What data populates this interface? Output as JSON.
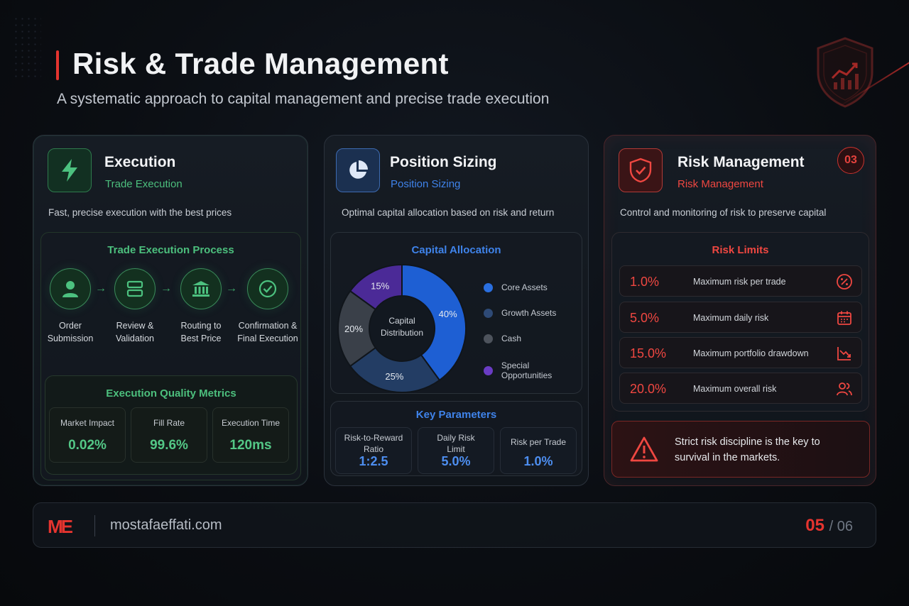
{
  "header": {
    "title": "Risk & Trade Management",
    "subtitle": "A systematic approach to capital management and precise trade execution",
    "accent_color": "#e5342f"
  },
  "execution": {
    "title": "Execution",
    "subtitle": "Trade Execution",
    "description": "Fast, precise execution with the best prices",
    "accent_color": "#47b877",
    "icon": "lightning-icon",
    "process": {
      "title": "Trade Execution Process",
      "steps": [
        {
          "label_1": "Order",
          "label_2": "Submission",
          "icon": "user-icon"
        },
        {
          "label_1": "Review &",
          "label_2": "Validation",
          "icon": "server-icon"
        },
        {
          "label_1": "Routing to",
          "label_2": "Best Price",
          "icon": "bank-icon"
        },
        {
          "label_1": "Confirmation &",
          "label_2": "Final Execution",
          "icon": "check-circle-icon"
        }
      ]
    },
    "metrics": {
      "title": "Execution Quality Metrics",
      "items": [
        {
          "label": "Market Impact",
          "value": "0.02%"
        },
        {
          "label": "Fill Rate",
          "value": "99.6%"
        },
        {
          "label": "Execution Time",
          "value": "120ms"
        }
      ]
    }
  },
  "position": {
    "title": "Position Sizing",
    "subtitle": "Position Sizing",
    "description": "Optimal capital allocation based on risk and return",
    "accent_color": "#3f83ea",
    "icon": "pie-chart-icon",
    "allocation": {
      "title": "Capital Allocation",
      "center_label_1": "Capital",
      "center_label_2": "Distribution"
    },
    "params": {
      "title": "Key Parameters",
      "items": [
        {
          "label_1": "Risk-to-Reward",
          "label_2": "Ratio",
          "value": "1:2.5"
        },
        {
          "label_1": "Daily Risk",
          "label_2": "Limit",
          "value": "5.0%"
        },
        {
          "label_1": "Risk per Trade",
          "label_2": "",
          "value": "1.0%"
        }
      ]
    }
  },
  "chart_data": {
    "type": "pie",
    "title": "Capital Allocation",
    "categories": [
      "Core Assets",
      "Growth Assets",
      "Cash",
      "Special Opportunities"
    ],
    "values": [
      40,
      25,
      20,
      15
    ],
    "labels": [
      "40%",
      "25%",
      "20%",
      "15%"
    ],
    "colors": [
      "#1e5fd3",
      "#233d64",
      "#3a4049",
      "#4b2a97"
    ],
    "legend_position": "right"
  },
  "risk": {
    "title": "Risk Management",
    "subtitle": "Risk Management",
    "badge": "03",
    "description": "Control and monitoring of risk to preserve capital",
    "accent_color": "#e5342f",
    "icon": "shield-check-icon",
    "limits": {
      "title": "Risk Limits",
      "items": [
        {
          "value": "1.0%",
          "label": "Maximum risk per trade",
          "icon": "percent-icon"
        },
        {
          "value": "5.0%",
          "label": "Maximum daily risk",
          "icon": "calendar-icon"
        },
        {
          "value": "15.0%",
          "label": "Maximum portfolio drawdown",
          "icon": "trend-down-icon"
        },
        {
          "value": "20.0%",
          "label": "Maximum overall risk",
          "icon": "users-icon"
        }
      ]
    },
    "warning": {
      "line_1": "Strict risk discipline is the key to",
      "line_2": "survival in the markets.",
      "icon": "warning-icon"
    }
  },
  "footer": {
    "logo": "ME",
    "url": "mostafaeffati.com",
    "page_current": "05",
    "page_total": "/ 06"
  }
}
